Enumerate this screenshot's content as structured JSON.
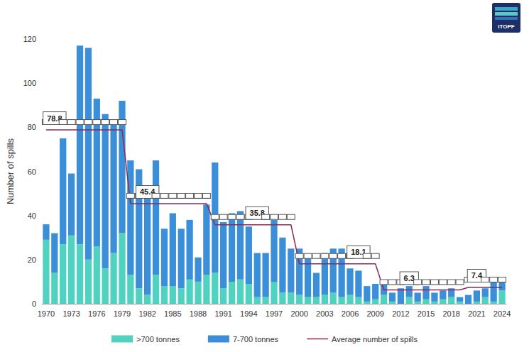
{
  "chart_data": {
    "type": "bar",
    "logo": "ITOPF",
    "y_label": "Number of spills",
    "categories": [
      1970,
      null,
      null,
      1973,
      null,
      null,
      1976,
      null,
      null,
      1979,
      null,
      null,
      1982,
      null,
      null,
      1985,
      null,
      null,
      1988,
      null,
      null,
      1991,
      null,
      null,
      1994,
      null,
      null,
      1997,
      null,
      null,
      2000,
      null,
      null,
      2003,
      null,
      null,
      2006,
      null,
      null,
      2009,
      null,
      null,
      2012,
      null,
      null,
      2015,
      null,
      null,
      2018,
      null,
      null,
      2021,
      null,
      null,
      2024
    ],
    "series": [
      {
        "name": ">700 tonnes",
        "type": "bar",
        "color": "#4fd3c0",
        "values": [
          29,
          14,
          27,
          31,
          27,
          20,
          26,
          16,
          23,
          32,
          13,
          7,
          4,
          13,
          8,
          8,
          7,
          11,
          10,
          13,
          14,
          7,
          10,
          11,
          9,
          3,
          3,
          10,
          5,
          5,
          4,
          3,
          3,
          4,
          5,
          3,
          4,
          3,
          1,
          2,
          4,
          1,
          0,
          3,
          1,
          2,
          1,
          2,
          3,
          1,
          0,
          1,
          3,
          1,
          6
        ]
      },
      {
        "name": "7-700 tonnes",
        "type": "bar",
        "color": "#3b8fd8",
        "values": [
          7,
          18,
          48,
          28,
          90,
          96,
          67,
          70,
          59,
          60,
          52,
          54,
          46,
          52,
          26,
          33,
          27,
          27,
          11,
          32,
          50,
          30,
          31,
          31,
          26,
          20,
          20,
          28,
          25,
          20,
          21,
          18,
          11,
          19,
          20,
          22,
          12,
          12,
          7,
          7,
          5,
          4,
          7,
          5,
          4,
          6,
          4,
          4,
          4,
          2,
          4,
          5,
          4,
          9,
          4
        ]
      },
      {
        "name": "Average number of spills",
        "type": "line",
        "color": "#8e2a55",
        "values": [
          78.8,
          78.8,
          78.8,
          78.8,
          78.8,
          78.8,
          78.8,
          78.8,
          78.8,
          78.8,
          45.4,
          45.4,
          45.4,
          45.4,
          45.4,
          45.4,
          45.4,
          45.4,
          45.4,
          45.4,
          35.8,
          35.8,
          35.8,
          35.8,
          35.8,
          35.8,
          35.8,
          35.8,
          35.8,
          35.8,
          18.1,
          18.1,
          18.1,
          18.1,
          18.1,
          18.1,
          18.1,
          18.1,
          18.1,
          18.1,
          6.3,
          6.3,
          6.3,
          6.3,
          6.3,
          6.3,
          6.3,
          6.3,
          6.3,
          6.3,
          7.4,
          7.4,
          7.4,
          7.4,
          7.4
        ],
        "value_labels": [
          null,
          "78.8",
          null,
          null,
          null,
          null,
          null,
          null,
          null,
          null,
          null,
          null,
          "45.4",
          null,
          null,
          null,
          null,
          null,
          null,
          null,
          null,
          null,
          null,
          null,
          null,
          "35.8",
          null,
          null,
          null,
          null,
          null,
          null,
          null,
          null,
          null,
          null,
          null,
          "18.1",
          null,
          null,
          null,
          null,
          null,
          "6.3",
          null,
          null,
          null,
          null,
          null,
          null,
          null,
          "7.4",
          null,
          null,
          null
        ]
      }
    ],
    "stacked": true,
    "ylim": [
      0,
      120
    ],
    "yticks": [
      0,
      20,
      40,
      60,
      80,
      100,
      120
    ],
    "grid": false,
    "legend": "bottom"
  }
}
